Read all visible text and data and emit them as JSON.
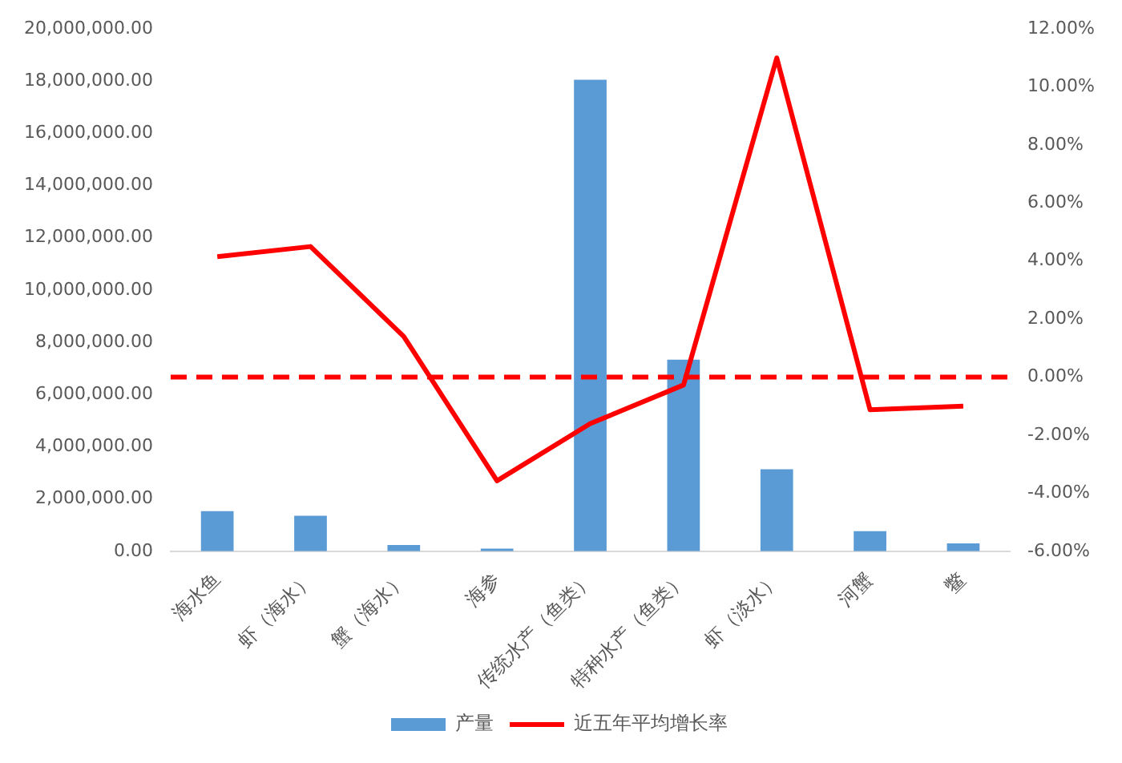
{
  "chart_data": {
    "type": "bar",
    "categories": [
      "海水鱼",
      "虾（海水）",
      "蟹（海水）",
      "海参",
      "传统水产（鱼类）",
      "特种水产（鱼类）",
      "虾（淡水）",
      "河蟹",
      "鳖"
    ],
    "series": [
      {
        "name": "产量",
        "color": "#5b9bd5",
        "values": [
          1540000,
          1360000,
          240000,
          100000,
          18050000,
          7340000,
          3140000,
          770000,
          300000
        ]
      },
      {
        "name": "近五年平均增长率",
        "type": "line",
        "axis": "y2",
        "color": "#ff0000",
        "values": [
          4.15,
          4.5,
          1.4,
          -3.57,
          -1.6,
          -0.27,
          11.0,
          -1.12,
          -1.0
        ]
      }
    ],
    "ylim": [
      0,
      20000000
    ],
    "yticks": [
      {
        "value": 0,
        "label": "0.00"
      },
      {
        "value": 2000000,
        "label": "2,000,000.00"
      },
      {
        "value": 4000000,
        "label": "4,000,000.00"
      },
      {
        "value": 6000000,
        "label": "6,000,000.00"
      },
      {
        "value": 8000000,
        "label": "8,000,000.00"
      },
      {
        "value": 10000000,
        "label": "10,000,000.00"
      },
      {
        "value": 12000000,
        "label": "12,000,000.00"
      },
      {
        "value": 14000000,
        "label": "14,000,000.00"
      },
      {
        "value": 16000000,
        "label": "16,000,000.00"
      },
      {
        "value": 18000000,
        "label": "18,000,000.00"
      },
      {
        "value": 20000000,
        "label": "20,000,000.00"
      }
    ],
    "y2lim": [
      -6,
      12
    ],
    "y2ticks": [
      {
        "value": -6,
        "label": "-6.00%"
      },
      {
        "value": -4,
        "label": "-4.00%"
      },
      {
        "value": -2,
        "label": "-2.00%"
      },
      {
        "value": 0,
        "label": "0.00%"
      },
      {
        "value": 2,
        "label": "2.00%"
      },
      {
        "value": 4,
        "label": "4.00%"
      },
      {
        "value": 6,
        "label": "6.00%"
      },
      {
        "value": 8,
        "label": "8.00%"
      },
      {
        "value": 10,
        "label": "10.00%"
      },
      {
        "value": 12,
        "label": "12.00%"
      }
    ],
    "ref_lines": [
      {
        "axis": "y2",
        "value": 0,
        "color": "#ff0000",
        "line_style": "dashed"
      }
    ],
    "legend": "bottom",
    "grid": false,
    "marker": "none"
  }
}
